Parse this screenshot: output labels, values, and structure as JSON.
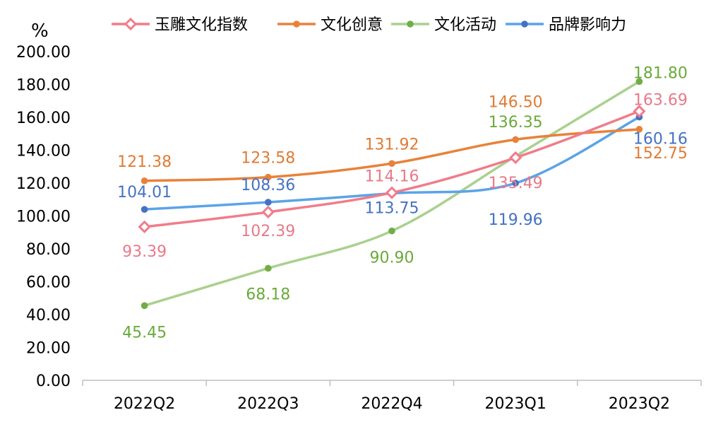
{
  "chart_data": {
    "type": "line",
    "title": "",
    "xlabel": "",
    "ylabel": "%",
    "ylim": [
      0,
      200
    ],
    "yticks": [
      "0.00",
      "20.00",
      "40.00",
      "60.00",
      "80.00",
      "100.00",
      "120.00",
      "140.00",
      "160.00",
      "180.00",
      "200.00"
    ],
    "categories": [
      "2022Q2",
      "2022Q3",
      "2022Q4",
      "2023Q1",
      "2023Q2"
    ],
    "legend_position": "top",
    "grid": false,
    "smooth": true,
    "series": [
      {
        "name": "玉雕文化指数",
        "values": [
          93.39,
          102.39,
          114.16,
          135.49,
          163.69
        ],
        "labels": [
          "93.39",
          "102.39",
          "114.16",
          "135.49",
          "163.69"
        ],
        "color": "#F07C8A",
        "label_color": "#E8798A",
        "marker": "diamond"
      },
      {
        "name": "文化创意",
        "values": [
          121.38,
          123.58,
          131.92,
          146.5,
          152.75
        ],
        "labels": [
          "121.38",
          "123.58",
          "131.92",
          "146.50",
          "152.75"
        ],
        "color": "#E8823A",
        "label_color": "#E07B33",
        "marker": "circle"
      },
      {
        "name": "文化活动",
        "values": [
          45.45,
          68.18,
          90.9,
          136.35,
          181.8
        ],
        "labels": [
          "45.45",
          "68.18",
          "90.90",
          "136.35",
          "181.80"
        ],
        "color": "#A9D18E",
        "label_color": "#6AAA3A",
        "marker": "circle",
        "marker_color": "#70AD47"
      },
      {
        "name": "品牌影响力",
        "values": [
          104.01,
          108.36,
          113.75,
          119.96,
          160.16
        ],
        "labels": [
          "104.01",
          "108.36",
          "113.75",
          "119.96",
          "160.16"
        ],
        "color": "#5BA3E8",
        "label_color": "#4472C4",
        "marker": "circle",
        "marker_color": "#4472C4"
      }
    ]
  }
}
